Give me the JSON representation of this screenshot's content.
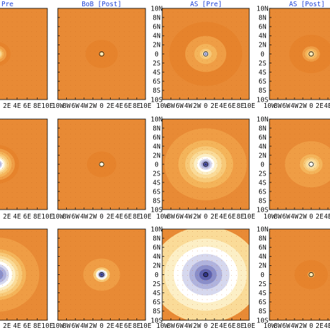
{
  "colors": {
    "background": "#e88a35",
    "title": "#1a3fd6",
    "levels": [
      "#e6832c",
      "#ef9d45",
      "#f4b45a",
      "#f7c978",
      "#fadb98",
      "#fcefc6",
      "#ffffff",
      "#d6d8ee",
      "#b0b3dd",
      "#8a8ec9",
      "#5d61ad",
      "#2f3488"
    ]
  },
  "chart_data": {
    "type": "heatmap",
    "layout": {
      "rows": 3,
      "cols": 4
    },
    "xlim": [
      -10,
      10
    ],
    "ylim": [
      -10,
      10
    ],
    "x_tick_values": [
      -10,
      -8,
      -6,
      -4,
      -2,
      0,
      2,
      4,
      6,
      8,
      10
    ],
    "x_tick_labels": [
      "10W",
      "8W",
      "6W",
      "4W",
      "2W",
      "0",
      "2E",
      "4E",
      "6E",
      "8E",
      "10E"
    ],
    "y_tick_values": [
      10,
      8,
      6,
      4,
      2,
      0,
      -2,
      -4,
      -6,
      -8,
      -10
    ],
    "y_tick_labels": [
      "10N",
      "8N",
      "6N",
      "4N",
      "2N",
      "0",
      "2S",
      "4S",
      "6S",
      "8S",
      "10S"
    ],
    "column_titles": [
      "Pre",
      "BoB [Post]",
      "AS [Pre]",
      "AS [Post]"
    ],
    "panels": [
      {
        "row": 0,
        "col": 0,
        "center_levels": [
          0,
          1,
          2,
          3,
          4,
          5,
          6,
          7,
          8
        ],
        "core_radius": [
          2.6,
          1.8,
          1.3,
          1.0,
          0.8,
          0.6,
          0.45,
          0.35,
          0.25
        ]
      },
      {
        "row": 0,
        "col": 1,
        "center_levels": [
          0,
          3,
          5
        ],
        "core_radius": [
          3.5,
          0.55,
          0.3
        ]
      },
      {
        "row": 0,
        "col": 2,
        "center_levels": [
          0,
          1,
          2,
          3,
          5,
          7,
          9
        ],
        "core_radius": [
          8,
          4.5,
          2.5,
          1.3,
          0.7,
          0.45,
          0.25
        ]
      },
      {
        "row": 0,
        "col": 3,
        "center_levels": [
          0,
          1,
          2,
          3,
          4,
          5
        ],
        "core_radius": [
          5,
          2.0,
          1.4,
          0.9,
          0.55,
          0.3
        ]
      },
      {
        "row": 1,
        "col": 0,
        "center_levels": [
          0,
          1,
          2,
          3,
          4,
          5,
          6,
          7,
          8,
          9,
          10,
          11
        ],
        "core_radius": [
          4.2,
          3.4,
          2.8,
          2.3,
          1.9,
          1.6,
          1.3,
          1.0,
          0.8,
          0.6,
          0.4,
          0.25
        ]
      },
      {
        "row": 1,
        "col": 1,
        "center_levels": [
          0,
          3,
          5,
          6
        ],
        "core_radius": [
          3.2,
          0.6,
          0.4,
          0.25
        ]
      },
      {
        "row": 1,
        "col": 2,
        "center_levels": [
          1,
          2,
          3,
          4,
          5,
          6,
          7,
          8,
          9,
          10,
          11
        ],
        "core_radius": [
          9,
          6,
          4.5,
          3.5,
          2.6,
          1.9,
          1.4,
          1.0,
          0.7,
          0.45,
          0.25
        ]
      },
      {
        "row": 1,
        "col": 3,
        "center_levels": [
          1,
          2,
          3,
          4,
          5,
          6
        ],
        "core_radius": [
          6,
          2.6,
          1.8,
          1.3,
          0.8,
          0.4
        ]
      },
      {
        "row": 2,
        "col": 0,
        "center_levels": [
          1,
          2,
          3,
          4,
          5,
          6,
          7,
          8,
          9,
          10
        ],
        "core_radius": [
          8,
          5.5,
          4.8,
          4.1,
          3.5,
          2.9,
          2.3,
          1.8,
          1.2,
          0.6
        ]
      },
      {
        "row": 2,
        "col": 1,
        "center_levels": [
          1,
          3,
          5,
          6,
          7,
          8,
          9,
          10,
          11
        ],
        "core_radius": [
          4,
          1.8,
          1.3,
          1.1,
          0.9,
          0.7,
          0.55,
          0.4,
          0.25
        ]
      },
      {
        "row": 2,
        "col": 2,
        "center_levels": [
          4,
          5,
          6,
          7,
          8,
          9,
          10,
          11
        ],
        "core_radius": [
          12,
          9,
          7,
          5.2,
          3.6,
          2.4,
          1.4,
          0.6
        ]
      },
      {
        "row": 2,
        "col": 3,
        "center_levels": [
          0,
          2,
          4,
          5
        ],
        "core_radius": [
          3.8,
          0.8,
          0.45,
          0.25
        ]
      }
    ]
  }
}
